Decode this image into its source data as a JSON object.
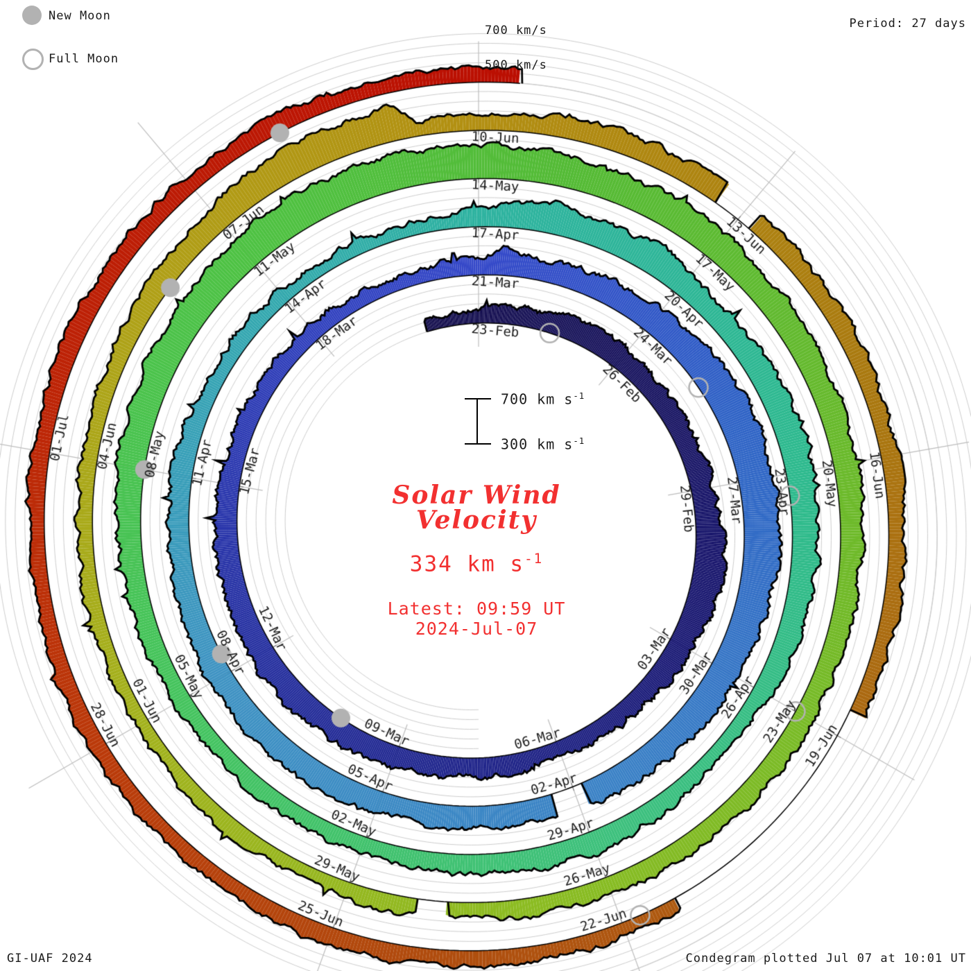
{
  "legend": {
    "new_moon": "New Moon",
    "full_moon": "Full Moon"
  },
  "header": {
    "period": "Period: 27 days"
  },
  "footer": {
    "left": "GI-UAF 2024",
    "right": "Condegram plotted Jul 07 at 10:01 UT"
  },
  "radial_axis": {
    "label_700": "700 km/s",
    "label_500": "500 km/s"
  },
  "center": {
    "scale_top": "700 km s",
    "scale_top_sup": "-1",
    "scale_bottom": "300 km s",
    "scale_bottom_sup": "-1",
    "title_line1": "Solar Wind",
    "title_line2": "Velocity",
    "value": "334 km s",
    "value_sup": "-1",
    "latest_line1": "Latest: 09:59 UT",
    "latest_line2": "2024-Jul-07"
  },
  "chart_data": {
    "type": "area",
    "subtype": "condegram-spiral (solar wind velocity vs time, one turn = 27 days, time runs clockwise from top)",
    "title": "Solar Wind Velocity",
    "period_days": 27,
    "start_date_at_top": "2024-02-23",
    "latest_date": "2024-Jul-07",
    "latest_time": "09:59 UT",
    "latest_velocity_kms": 334,
    "plotted_stamp": "Jul 07 at 10:01 UT",
    "baseline_kms": 200,
    "gridlines_kms": [
      300,
      400,
      500,
      600,
      700
    ],
    "scale_marker_kms": [
      300,
      700
    ],
    "outer_ring_labels_kms": [
      500,
      700
    ],
    "date_labels": [
      {
        "day": 0,
        "label": "23-Feb"
      },
      {
        "day": 3,
        "label": "26-Feb"
      },
      {
        "day": 6,
        "label": "29-Feb"
      },
      {
        "day": 9,
        "label": "03-Mar"
      },
      {
        "day": 12,
        "label": "06-Mar"
      },
      {
        "day": 15,
        "label": "09-Mar"
      },
      {
        "day": 18,
        "label": "12-Mar"
      },
      {
        "day": 21,
        "label": "15-Mar"
      },
      {
        "day": 24,
        "label": "18-Mar"
      },
      {
        "day": 27,
        "label": "21-Mar"
      },
      {
        "day": 30,
        "label": "24-Mar"
      },
      {
        "day": 33,
        "label": "27-Mar"
      },
      {
        "day": 36,
        "label": "30-Mar"
      },
      {
        "day": 39,
        "label": "02-Apr"
      },
      {
        "day": 42,
        "label": "05-Apr"
      },
      {
        "day": 45,
        "label": "08-Apr"
      },
      {
        "day": 48,
        "label": "11-Apr"
      },
      {
        "day": 51,
        "label": "14-Apr"
      },
      {
        "day": 54,
        "label": "17-Apr"
      },
      {
        "day": 57,
        "label": "20-Apr"
      },
      {
        "day": 60,
        "label": "23-Apr"
      },
      {
        "day": 63,
        "label": "26-Apr"
      },
      {
        "day": 66,
        "label": "29-Apr"
      },
      {
        "day": 69,
        "label": "02-May"
      },
      {
        "day": 72,
        "label": "05-May"
      },
      {
        "day": 75,
        "label": "08-May"
      },
      {
        "day": 78,
        "label": "11-May"
      },
      {
        "day": 81,
        "label": "14-May"
      },
      {
        "day": 84,
        "label": "17-May"
      },
      {
        "day": 87,
        "label": "20-May"
      },
      {
        "day": 90,
        "label": "23-May"
      },
      {
        "day": 93,
        "label": "26-May"
      },
      {
        "day": 96,
        "label": "29-May"
      },
      {
        "day": 99,
        "label": "01-Jun"
      },
      {
        "day": 102,
        "label": "04-Jun"
      },
      {
        "day": 105,
        "label": "07-Jun"
      },
      {
        "day": 108,
        "label": "10-Jun"
      },
      {
        "day": 111,
        "label": "13-Jun"
      },
      {
        "day": 114,
        "label": "16-Jun"
      },
      {
        "day": 117,
        "label": "19-Jun"
      },
      {
        "day": 120,
        "label": "22-Jun"
      },
      {
        "day": 123,
        "label": "25-Jun"
      },
      {
        "day": 126,
        "label": "28-Jun"
      },
      {
        "day": 129,
        "label": "01-Jul"
      }
    ],
    "velocity_anchors_day_kms": [
      [
        -1.1,
        330
      ],
      [
        0,
        345
      ],
      [
        1.5,
        420
      ],
      [
        3,
        430
      ],
      [
        4.5,
        400
      ],
      [
        6,
        435
      ],
      [
        7.5,
        505
      ],
      [
        9,
        450
      ],
      [
        10.5,
        390
      ],
      [
        12,
        372
      ],
      [
        13.5,
        398
      ],
      [
        15,
        412
      ],
      [
        16.5,
        448
      ],
      [
        18,
        468
      ],
      [
        19.5,
        438
      ],
      [
        21,
        412
      ],
      [
        22.5,
        385
      ],
      [
        24,
        362
      ],
      [
        25.5,
        348
      ],
      [
        27,
        368
      ],
      [
        27.4,
        500
      ],
      [
        27.9,
        420
      ],
      [
        28.5,
        430
      ],
      [
        30,
        490
      ],
      [
        31.5,
        555
      ],
      [
        33,
        572
      ],
      [
        34.5,
        548
      ],
      [
        36,
        518
      ],
      [
        37.5,
        482
      ],
      [
        39,
        452
      ],
      [
        40.5,
        428
      ],
      [
        42,
        415
      ],
      [
        43.5,
        452
      ],
      [
        45,
        448
      ],
      [
        46.5,
        428
      ],
      [
        48,
        412
      ],
      [
        49.5,
        372
      ],
      [
        51,
        345
      ],
      [
        52.5,
        332
      ],
      [
        54,
        372
      ],
      [
        55,
        510
      ],
      [
        55.8,
        460
      ],
      [
        56.5,
        510
      ],
      [
        57.5,
        430
      ],
      [
        58.5,
        465
      ],
      [
        60,
        498
      ],
      [
        61.5,
        462
      ],
      [
        63,
        382
      ],
      [
        64.5,
        355
      ],
      [
        66,
        428
      ],
      [
        67.5,
        405
      ],
      [
        69,
        382
      ],
      [
        70.5,
        362
      ],
      [
        72,
        380
      ],
      [
        73.5,
        428
      ],
      [
        75,
        478
      ],
      [
        76.5,
        515
      ],
      [
        78,
        555
      ],
      [
        79.5,
        552
      ],
      [
        81,
        542
      ],
      [
        82.5,
        522
      ],
      [
        84,
        492
      ],
      [
        85.5,
        462
      ],
      [
        87,
        438
      ],
      [
        88.5,
        412
      ],
      [
        90,
        392
      ],
      [
        91.5,
        402
      ],
      [
        93,
        388
      ],
      [
        94.5,
        372
      ],
      [
        96,
        362
      ],
      [
        97.5,
        352
      ],
      [
        99,
        346
      ],
      [
        100.5,
        352
      ],
      [
        102,
        362
      ],
      [
        103.5,
        388
      ],
      [
        105,
        465
      ],
      [
        106.3,
        535
      ],
      [
        107.1,
        550
      ],
      [
        107.35,
        352
      ],
      [
        108,
        382
      ],
      [
        109.5,
        425
      ],
      [
        111,
        402
      ],
      [
        112.5,
        382
      ],
      [
        114,
        375
      ],
      [
        115.5,
        366
      ],
      [
        117,
        360
      ],
      [
        118.5,
        354
      ],
      [
        120,
        350
      ],
      [
        121.5,
        366
      ],
      [
        123,
        382
      ],
      [
        124.5,
        372
      ],
      [
        126,
        362
      ],
      [
        127.5,
        366
      ],
      [
        129,
        372
      ],
      [
        130.5,
        386
      ],
      [
        132,
        380
      ],
      [
        133.5,
        372
      ],
      [
        135.42,
        334
      ]
    ],
    "data_gaps_days": [
      [
        38.85,
        39.35
      ],
      [
        94.85,
        95.2
      ],
      [
        110.7,
        111.15
      ],
      [
        116.7,
        119.4
      ]
    ],
    "color_stops_day_hex": [
      [
        -1.1,
        "#16104e"
      ],
      [
        8,
        "#1a1870"
      ],
      [
        16,
        "#232b96"
      ],
      [
        24,
        "#3040bd"
      ],
      [
        27,
        "#3448c9"
      ],
      [
        32,
        "#2f63c6"
      ],
      [
        38,
        "#3a80c6"
      ],
      [
        45,
        "#3f93c3"
      ],
      [
        50,
        "#35a6b2"
      ],
      [
        54,
        "#2eb3a0"
      ],
      [
        60,
        "#2eba8e"
      ],
      [
        66,
        "#3ec17c"
      ],
      [
        72,
        "#45c45e"
      ],
      [
        78,
        "#4ec243"
      ],
      [
        82,
        "#54bb36"
      ],
      [
        88,
        "#6fba2a"
      ],
      [
        94,
        "#8cbc22"
      ],
      [
        99,
        "#a3b21d"
      ],
      [
        104,
        "#b0a017"
      ],
      [
        108,
        "#b28f12"
      ],
      [
        113,
        "#aa7a10"
      ],
      [
        118,
        "#ac6212"
      ],
      [
        122,
        "#b04c0e"
      ],
      [
        126,
        "#bb3a0a"
      ],
      [
        130,
        "#bd2206"
      ],
      [
        135.42,
        "#bb0e02"
      ]
    ],
    "moons": {
      "new_moon_days": [
        16.2,
        45.3,
        75.0,
        104.1,
        133.0
      ],
      "new_moon_dates": [
        "2024-03-10",
        "2024-04-08",
        "2024-05-08",
        "2024-06-06",
        "2024-07-05"
      ],
      "full_moon_days": [
        1.5,
        31.3,
        60.3,
        90.0,
        119.8
      ],
      "full_moon_dates": [
        "2024-02-24",
        "2024-03-25",
        "2024-04-23",
        "2024-05-23",
        "2024-06-22"
      ]
    },
    "marker_color": "#b2b2b2",
    "grid_color": "#cccccc",
    "outline_color": "#000000"
  }
}
